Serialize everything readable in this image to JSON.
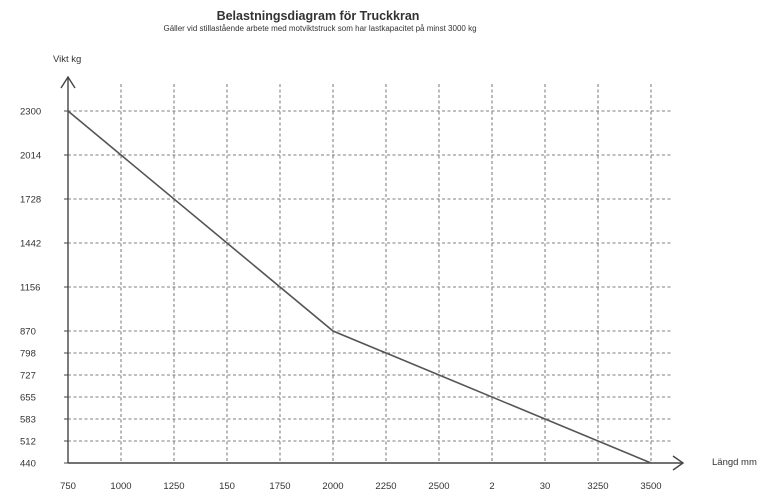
{
  "chart_data": {
    "type": "line",
    "title": "Belastningsdiagram för Truckkran",
    "subtitle": "Gäller vid stillastående arbete med motviktstruck som har lastkapacitet på minst 3000 kg",
    "ylabel": "Vikt kg",
    "xlabel": "Längd mm",
    "x_ticks": [
      "750",
      "1000",
      "1250",
      "150",
      "1750",
      "2000",
      "2250",
      "2500",
      "2",
      "30",
      "3250",
      "3500"
    ],
    "y_ticks": [
      "2300",
      "2014",
      "1728",
      "1442",
      "1156",
      "870",
      "798",
      "727",
      "655",
      "583",
      "512",
      "440"
    ],
    "xlim": [
      750,
      3500
    ],
    "ylim": [
      440,
      2300
    ],
    "grid": true,
    "series": [
      {
        "x": [
          750,
          2000,
          3500
        ],
        "y": [
          2300,
          870,
          440
        ]
      }
    ]
  }
}
